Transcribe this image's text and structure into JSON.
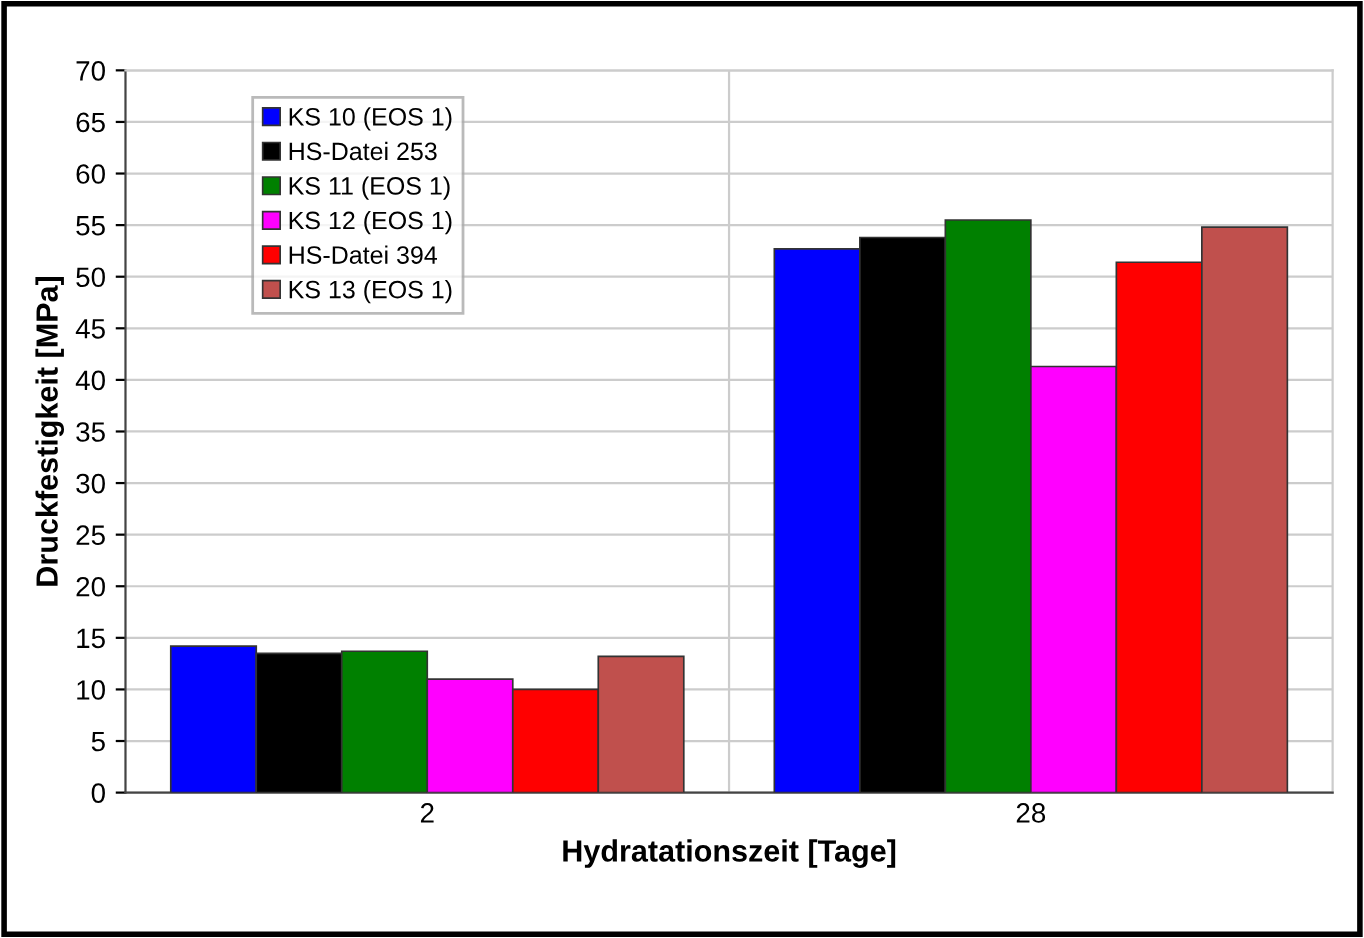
{
  "chart_data": {
    "type": "bar",
    "xlabel": "Hydratationszeit [Tage]",
    "ylabel": "Druckfestigkeit [MPa]",
    "categories": [
      "2",
      "28"
    ],
    "series": [
      {
        "name": "KS 10 (EOS 1)",
        "color": "#0000ff",
        "values": [
          14.2,
          52.7
        ]
      },
      {
        "name": "HS-Datei 253",
        "color": "#000000",
        "values": [
          13.5,
          53.8
        ]
      },
      {
        "name": "KS 11 (EOS 1)",
        "color": "#008000",
        "values": [
          13.7,
          55.5
        ]
      },
      {
        "name": "KS 12 (EOS 1)",
        "color": "#ff00ff",
        "values": [
          11,
          41.3
        ]
      },
      {
        "name": "HS-Datei 394",
        "color": "#ff0000",
        "values": [
          10,
          51.4
        ]
      },
      {
        "name": "KS 13 (EOS 1)",
        "color": "#c0504d",
        "values": [
          13.2,
          54.8
        ]
      }
    ],
    "ylim": [
      0,
      70
    ],
    "yticks": [
      0,
      5,
      10,
      15,
      20,
      25,
      30,
      35,
      40,
      45,
      50,
      55,
      60,
      65,
      70
    ],
    "grid": true,
    "legend": "top left"
  }
}
